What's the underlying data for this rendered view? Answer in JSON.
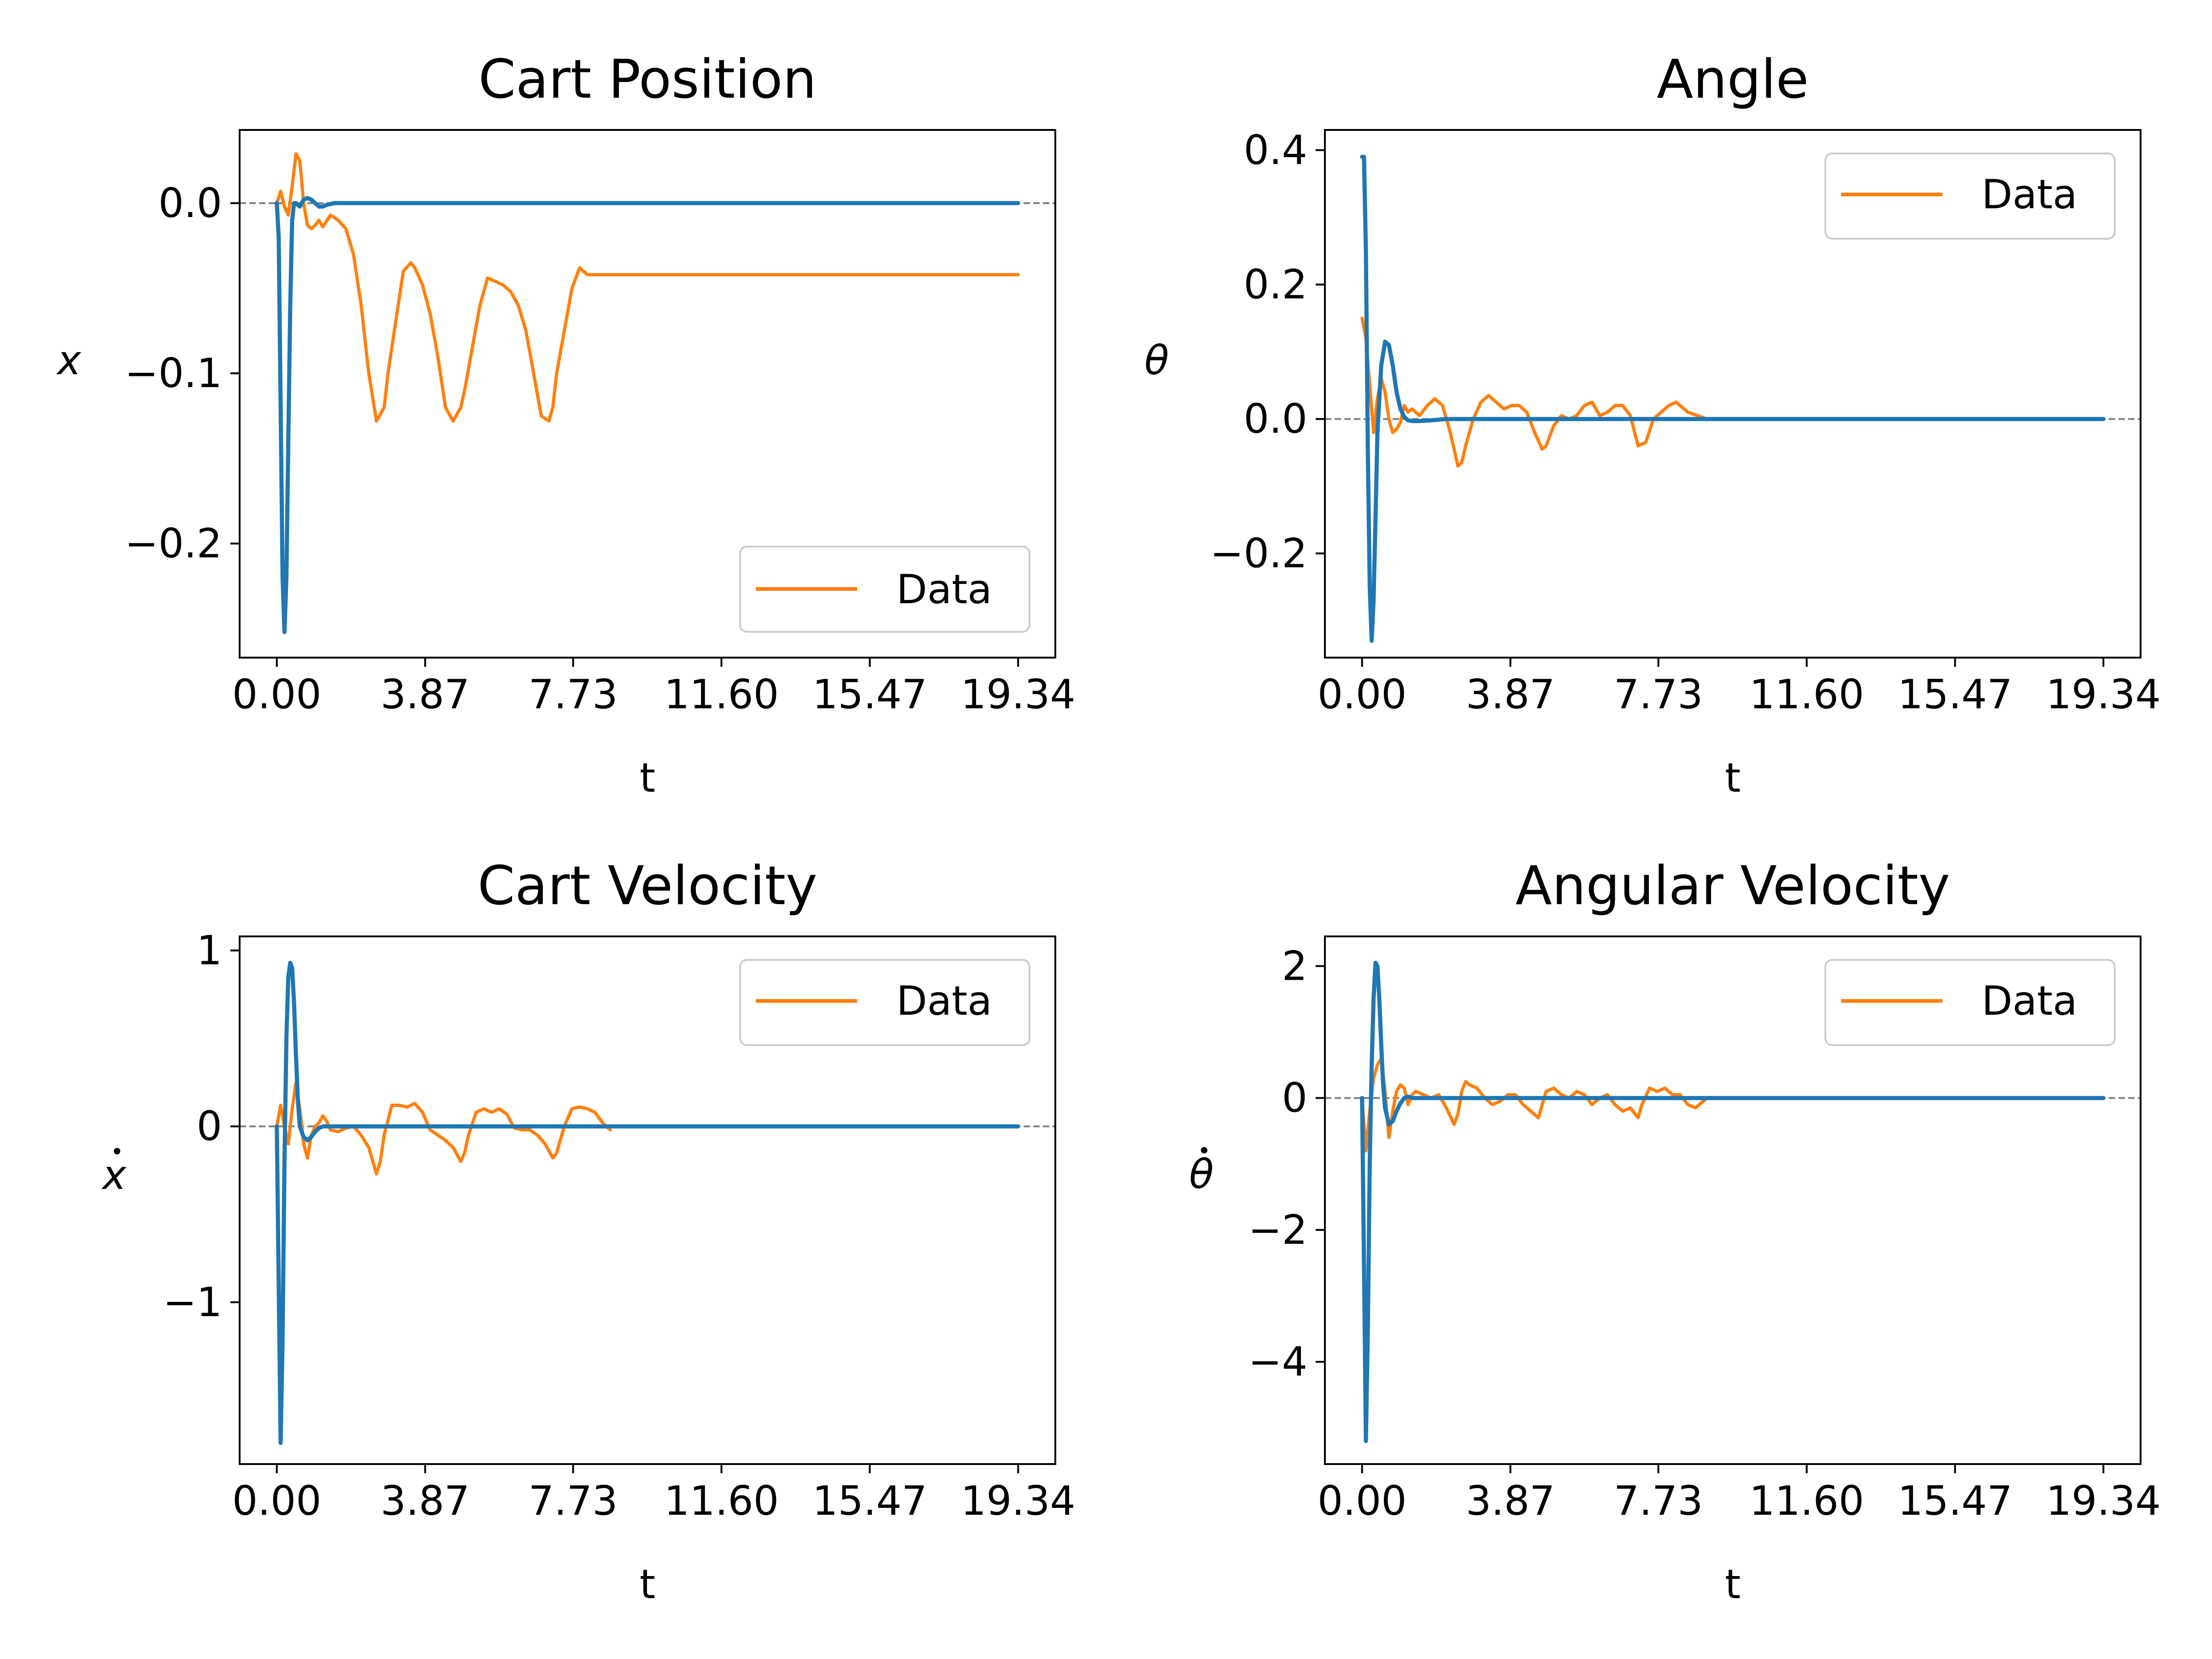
{
  "chart_data": [
    {
      "type": "line",
      "title": "Cart Position",
      "xlabel": "t",
      "ylabel": "x",
      "ylabel_dot": false,
      "xlim": [
        -0.97,
        20.31
      ],
      "ylim": [
        -0.267,
        0.043
      ],
      "xticks": [
        0.0,
        3.87,
        7.73,
        11.6,
        15.47,
        19.34
      ],
      "xtick_labels": [
        "0.00",
        "3.87",
        "7.73",
        "11.60",
        "15.47",
        "19.34"
      ],
      "yticks": [
        0.0,
        -0.1,
        -0.2
      ],
      "ytick_labels": [
        "0.0",
        "−0.1",
        "−0.2"
      ],
      "zero_line": true,
      "legend": {
        "position": "lower-right",
        "entries": [
          "Data"
        ]
      },
      "series": [
        {
          "name": "Data",
          "color": "#ff7f0e",
          "x": [
            0.0,
            0.1,
            0.2,
            0.3,
            0.4,
            0.5,
            0.6,
            0.7,
            0.8,
            0.9,
            1.0,
            1.1,
            1.2,
            1.4,
            1.6,
            1.8,
            2.0,
            2.2,
            2.4,
            2.6,
            2.8,
            2.9,
            3.1,
            3.3,
            3.5,
            3.6,
            3.8,
            4.0,
            4.2,
            4.4,
            4.6,
            4.8,
            4.9,
            5.1,
            5.3,
            5.5,
            5.7,
            5.9,
            6.1,
            6.3,
            6.5,
            6.7,
            6.9,
            7.1,
            7.2,
            7.3,
            7.5,
            7.7,
            7.9,
            8.1,
            8.3,
            8.5,
            8.7,
            9.0,
            10.0,
            11.6,
            13.0,
            15.47,
            17.0,
            19.34
          ],
          "y": [
            0.0,
            0.007,
            -0.002,
            -0.007,
            0.01,
            0.029,
            0.025,
            0.0,
            -0.013,
            -0.015,
            -0.013,
            -0.01,
            -0.014,
            -0.007,
            -0.01,
            -0.015,
            -0.03,
            -0.06,
            -0.1,
            -0.128,
            -0.12,
            -0.1,
            -0.07,
            -0.04,
            -0.035,
            -0.038,
            -0.048,
            -0.065,
            -0.09,
            -0.12,
            -0.128,
            -0.12,
            -0.11,
            -0.085,
            -0.06,
            -0.044,
            -0.046,
            -0.048,
            -0.052,
            -0.06,
            -0.075,
            -0.1,
            -0.125,
            -0.128,
            -0.12,
            -0.1,
            -0.075,
            -0.05,
            -0.038,
            -0.042,
            -0.042,
            -0.042,
            -0.042,
            -0.042,
            -0.042,
            -0.042,
            -0.042,
            -0.042,
            -0.042,
            -0.042
          ]
        },
        {
          "name": "",
          "color": "#1f77b4",
          "x": [
            0.0,
            0.05,
            0.1,
            0.15,
            0.2,
            0.25,
            0.3,
            0.35,
            0.4,
            0.45,
            0.5,
            0.6,
            0.7,
            0.8,
            0.9,
            1.0,
            1.1,
            1.2,
            1.3,
            1.5,
            1.8,
            2.2,
            3.0,
            5.0,
            10.0,
            15.0,
            19.34
          ],
          "y": [
            0.0,
            -0.02,
            -0.12,
            -0.22,
            -0.252,
            -0.22,
            -0.14,
            -0.06,
            -0.01,
            0.0,
            0.0,
            -0.002,
            0.002,
            0.003,
            0.002,
            0.0,
            -0.002,
            -0.002,
            -0.001,
            0.0,
            0.0,
            0.0,
            0.0,
            0.0,
            0.0,
            0.0,
            0.0
          ]
        }
      ]
    },
    {
      "type": "line",
      "title": "Angle",
      "xlabel": "t",
      "ylabel": "θ",
      "ylabel_dot": false,
      "xlim": [
        -0.97,
        20.31
      ],
      "ylim": [
        -0.355,
        0.43
      ],
      "xticks": [
        0.0,
        3.87,
        7.73,
        11.6,
        15.47,
        19.34
      ],
      "xtick_labels": [
        "0.00",
        "3.87",
        "7.73",
        "11.60",
        "15.47",
        "19.34"
      ],
      "yticks": [
        0.4,
        0.2,
        0.0,
        -0.2
      ],
      "ytick_labels": [
        "0.4",
        "0.2",
        "0.0",
        "−0.2"
      ],
      "zero_line": true,
      "legend": {
        "position": "upper-right",
        "entries": [
          "Data"
        ]
      },
      "series": [
        {
          "name": "Data",
          "color": "#ff7f0e",
          "x": [
            0.0,
            0.1,
            0.2,
            0.3,
            0.4,
            0.5,
            0.6,
            0.7,
            0.8,
            0.9,
            1.0,
            1.1,
            1.2,
            1.3,
            1.5,
            1.7,
            1.9,
            2.1,
            2.3,
            2.5,
            2.6,
            2.7,
            2.9,
            3.1,
            3.3,
            3.5,
            3.7,
            3.9,
            4.1,
            4.3,
            4.5,
            4.7,
            4.8,
            5.0,
            5.2,
            5.4,
            5.6,
            5.8,
            6.0,
            6.2,
            6.4,
            6.6,
            6.8,
            7.0,
            7.2,
            7.4,
            7.6,
            7.8,
            8.0,
            8.2,
            8.5,
            9.0
          ],
          "y": [
            0.15,
            0.12,
            0.05,
            -0.02,
            0.03,
            0.06,
            0.04,
            0.0,
            -0.02,
            -0.015,
            -0.005,
            0.02,
            0.01,
            0.015,
            0.005,
            0.02,
            0.03,
            0.02,
            -0.02,
            -0.07,
            -0.065,
            -0.04,
            0.0,
            0.025,
            0.035,
            0.025,
            0.015,
            0.02,
            0.02,
            0.01,
            -0.02,
            -0.045,
            -0.04,
            -0.01,
            0.005,
            0.0,
            0.005,
            0.02,
            0.025,
            0.005,
            0.01,
            0.02,
            0.02,
            0.005,
            -0.04,
            -0.035,
            0.0,
            0.01,
            0.02,
            0.025,
            0.01,
            0.0
          ]
        },
        {
          "name": "",
          "color": "#1f77b4",
          "x": [
            0.0,
            0.05,
            0.1,
            0.15,
            0.2,
            0.25,
            0.3,
            0.35,
            0.4,
            0.5,
            0.6,
            0.7,
            0.8,
            0.9,
            1.0,
            1.1,
            1.2,
            1.3,
            1.5,
            1.8,
            2.2,
            3.0,
            5.0,
            10.0,
            15.0,
            19.34
          ],
          "y": [
            0.39,
            0.39,
            0.25,
            -0.05,
            -0.25,
            -0.33,
            -0.27,
            -0.15,
            -0.02,
            0.08,
            0.115,
            0.11,
            0.08,
            0.04,
            0.015,
            0.003,
            -0.002,
            -0.003,
            -0.003,
            -0.002,
            0.0,
            0.0,
            0.0,
            0.0,
            0.0,
            0.0
          ]
        }
      ]
    },
    {
      "type": "line",
      "title": "Cart Velocity",
      "xlabel": "t",
      "ylabel": "x",
      "ylabel_dot": true,
      "xlim": [
        -0.97,
        20.31
      ],
      "ylim": [
        -1.92,
        1.08
      ],
      "xticks": [
        0.0,
        3.87,
        7.73,
        11.6,
        15.47,
        19.34
      ],
      "xtick_labels": [
        "0.00",
        "3.87",
        "7.73",
        "11.60",
        "15.47",
        "19.34"
      ],
      "yticks": [
        1,
        0,
        -1
      ],
      "ytick_labels": [
        "1",
        "0",
        "−1"
      ],
      "zero_line": true,
      "legend": {
        "position": "upper-right",
        "entries": [
          "Data"
        ]
      },
      "series": [
        {
          "name": "Data",
          "color": "#ff7f0e",
          "x": [
            0.0,
            0.1,
            0.2,
            0.3,
            0.4,
            0.5,
            0.6,
            0.7,
            0.8,
            0.9,
            1.0,
            1.1,
            1.2,
            1.3,
            1.4,
            1.6,
            1.8,
            2.0,
            2.2,
            2.4,
            2.6,
            2.7,
            2.8,
            3.0,
            3.2,
            3.4,
            3.6,
            3.8,
            4.0,
            4.2,
            4.4,
            4.6,
            4.8,
            4.9,
            5.0,
            5.2,
            5.4,
            5.6,
            5.8,
            6.0,
            6.2,
            6.4,
            6.6,
            6.8,
            7.0,
            7.2,
            7.3,
            7.5,
            7.7,
            7.9,
            8.1,
            8.3,
            8.5,
            8.7
          ],
          "y": [
            0.0,
            0.12,
            0.0,
            -0.1,
            0.1,
            0.25,
            0.1,
            -0.1,
            -0.18,
            -0.05,
            0.0,
            0.02,
            0.06,
            0.03,
            -0.02,
            -0.03,
            -0.01,
            0.0,
            -0.05,
            -0.12,
            -0.27,
            -0.2,
            -0.05,
            0.12,
            0.12,
            0.11,
            0.13,
            0.08,
            -0.02,
            -0.05,
            -0.08,
            -0.12,
            -0.2,
            -0.15,
            -0.05,
            0.08,
            0.1,
            0.08,
            0.1,
            0.07,
            -0.01,
            -0.02,
            -0.02,
            -0.05,
            -0.1,
            -0.18,
            -0.15,
            0.0,
            0.1,
            0.11,
            0.1,
            0.08,
            0.02,
            -0.02
          ]
        },
        {
          "name": "",
          "color": "#1f77b4",
          "x": [
            0.0,
            0.05,
            0.1,
            0.15,
            0.2,
            0.25,
            0.3,
            0.35,
            0.4,
            0.45,
            0.5,
            0.55,
            0.6,
            0.7,
            0.8,
            0.9,
            1.0,
            1.1,
            1.2,
            1.3,
            1.5,
            1.8,
            2.2,
            3.0,
            5.0,
            10.0,
            15.0,
            19.34
          ],
          "y": [
            0.0,
            -0.9,
            -1.8,
            -1.2,
            -0.2,
            0.5,
            0.85,
            0.93,
            0.9,
            0.7,
            0.4,
            0.15,
            0.0,
            -0.06,
            -0.08,
            -0.06,
            -0.03,
            -0.01,
            0.0,
            0.0,
            0.0,
            0.0,
            0.0,
            0.0,
            0.0,
            0.0,
            0.0,
            0.0
          ]
        }
      ]
    },
    {
      "type": "line",
      "title": "Angular Velocity",
      "xlabel": "t",
      "ylabel": "θ",
      "ylabel_dot": true,
      "xlim": [
        -0.97,
        20.31
      ],
      "ylim": [
        -5.55,
        2.45
      ],
      "xticks": [
        0.0,
        3.87,
        7.73,
        11.6,
        15.47,
        19.34
      ],
      "xtick_labels": [
        "0.00",
        "3.87",
        "7.73",
        "11.60",
        "15.47",
        "19.34"
      ],
      "yticks": [
        2,
        0,
        -2,
        -4
      ],
      "ytick_labels": [
        "2",
        "0",
        "−2",
        "−4"
      ],
      "zero_line": true,
      "legend": {
        "position": "upper-right",
        "entries": [
          "Data"
        ]
      },
      "series": [
        {
          "name": "Data",
          "color": "#ff7f0e",
          "x": [
            0.0,
            0.1,
            0.2,
            0.3,
            0.4,
            0.5,
            0.6,
            0.7,
            0.8,
            0.9,
            1.0,
            1.1,
            1.2,
            1.3,
            1.4,
            1.6,
            1.8,
            2.0,
            2.2,
            2.4,
            2.5,
            2.6,
            2.7,
            2.8,
            3.0,
            3.2,
            3.4,
            3.6,
            3.8,
            4.0,
            4.2,
            4.4,
            4.6,
            4.7,
            4.8,
            5.0,
            5.2,
            5.4,
            5.6,
            5.8,
            6.0,
            6.2,
            6.4,
            6.6,
            6.8,
            7.0,
            7.2,
            7.3,
            7.5,
            7.7,
            7.9,
            8.1,
            8.3,
            8.5,
            8.7,
            9.0
          ],
          "y": [
            0.0,
            -0.8,
            -0.2,
            0.3,
            0.5,
            0.6,
            0.1,
            -0.6,
            -0.2,
            0.1,
            0.2,
            0.15,
            -0.1,
            0.05,
            0.1,
            0.05,
            0.0,
            0.05,
            -0.15,
            -0.4,
            -0.25,
            0.1,
            0.25,
            0.2,
            0.15,
            0.0,
            -0.1,
            -0.05,
            0.05,
            0.05,
            -0.1,
            -0.2,
            -0.3,
            -0.1,
            0.1,
            0.15,
            0.05,
            0.0,
            0.1,
            0.05,
            -0.1,
            0.0,
            0.05,
            -0.1,
            -0.2,
            -0.15,
            -0.3,
            -0.1,
            0.15,
            0.1,
            0.15,
            0.05,
            0.05,
            -0.1,
            -0.15,
            0.0
          ]
        },
        {
          "name": "",
          "color": "#1f77b4",
          "x": [
            0.0,
            0.05,
            0.1,
            0.15,
            0.2,
            0.25,
            0.3,
            0.35,
            0.4,
            0.45,
            0.5,
            0.55,
            0.6,
            0.7,
            0.8,
            0.9,
            1.0,
            1.1,
            1.2,
            1.3,
            1.5,
            1.8,
            2.2,
            3.0,
            5.0,
            10.0,
            15.0,
            19.34
          ],
          "y": [
            0.0,
            -2.5,
            -5.2,
            -3.5,
            -1.0,
            0.5,
            1.5,
            2.05,
            2.0,
            1.5,
            0.8,
            0.2,
            -0.15,
            -0.4,
            -0.35,
            -0.2,
            -0.08,
            0.0,
            0.02,
            0.0,
            0.0,
            0.0,
            0.0,
            0.0,
            0.0,
            0.0,
            0.0,
            0.0
          ]
        }
      ]
    }
  ]
}
